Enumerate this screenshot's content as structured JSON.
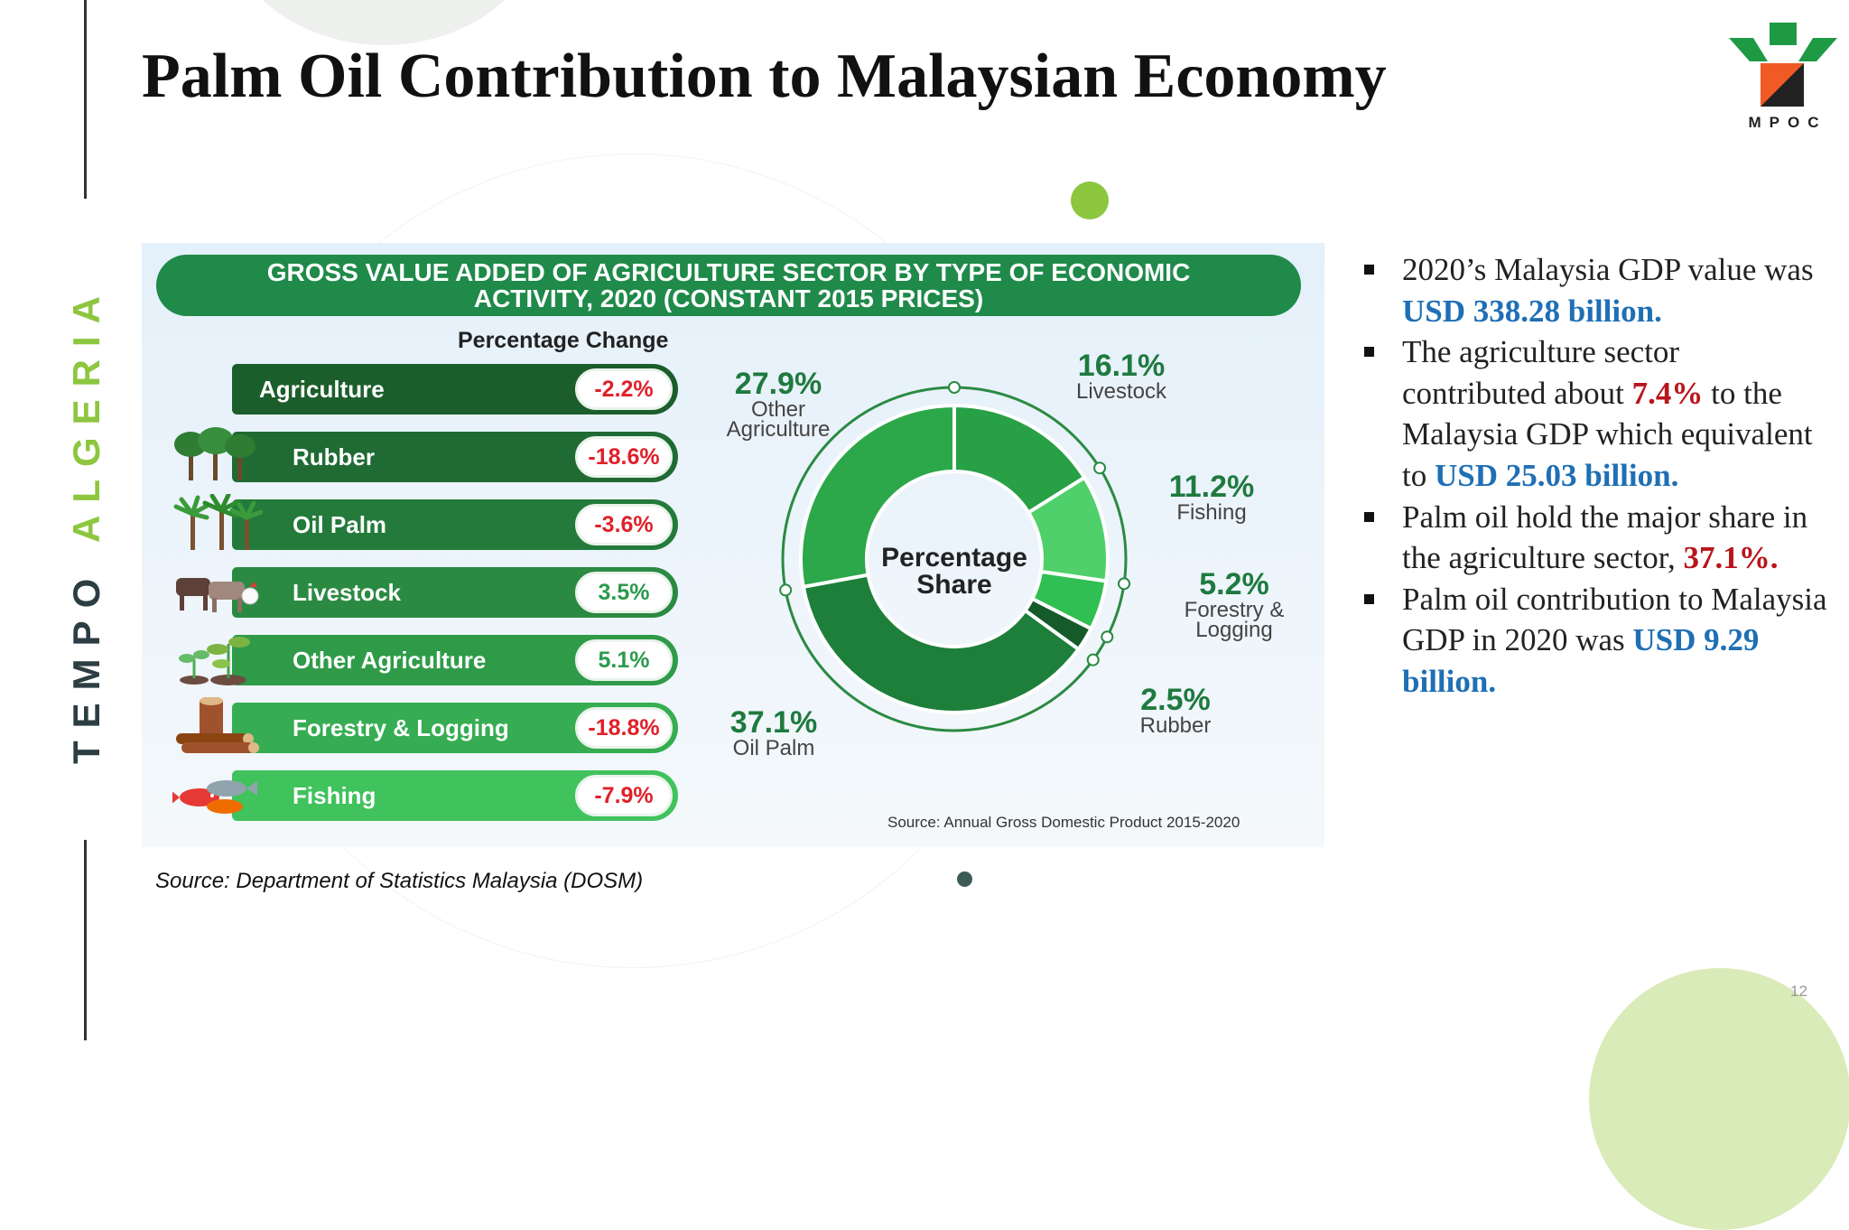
{
  "side_label": {
    "word1": "TEMPO",
    "word2": "ALGERIA"
  },
  "title": "Palm Oil Contribution to Malaysian Economy",
  "logo": {
    "text": "MPOC",
    "icon": "mpoc-logo-icon"
  },
  "infographic": {
    "header": "GROSS VALUE ADDED OF AGRICULTURE SECTOR BY TYPE OF ECONOMIC ACTIVITY, 2020 (CONSTANT 2015 PRICES)",
    "pct_heading": "Percentage Change",
    "rows": [
      {
        "label": "Agriculture",
        "value": "-2.2%",
        "color": "#1b5e2b",
        "picture": ""
      },
      {
        "label": "Rubber",
        "value": "-18.6%",
        "color": "#1f6b33",
        "picture": "rubber-trees-icon"
      },
      {
        "label": "Oil Palm",
        "value": "-3.6%",
        "color": "#237a3a",
        "picture": "palm-trees-icon"
      },
      {
        "label": "Livestock",
        "value": "3.5%",
        "color": "#2a8a42",
        "picture": "livestock-icon"
      },
      {
        "label": "Other Agriculture",
        "value": "5.1%",
        "color": "#2f9b49",
        "picture": "seedlings-icon"
      },
      {
        "label": "Forestry & Logging",
        "value": "-18.8%",
        "color": "#36ad52",
        "picture": "logs-icon"
      },
      {
        "label": "Fishing",
        "value": "-7.9%",
        "color": "#40c25c",
        "picture": "fish-icon"
      }
    ],
    "donut_title": "Percentage Share",
    "source": "Source: Annual Gross Domestic Product 2015-2020"
  },
  "chart_data": {
    "type": "pie",
    "title": "Percentage Share",
    "categories": [
      "Livestock",
      "Fishing",
      "Forestry & Logging",
      "Rubber",
      "Oil Palm",
      "Other Agriculture"
    ],
    "values": [
      16.1,
      11.2,
      5.2,
      2.5,
      37.1,
      27.9
    ],
    "value_labels": [
      "16.1%",
      "11.2%",
      "5.2%",
      "2.5%",
      "37.1%",
      "27.9%"
    ],
    "colors": [
      "#27a046",
      "#4fd06b",
      "#2fbf52",
      "#145a2a",
      "#1d7f3a",
      "#2ca84a"
    ]
  },
  "source": "Source: Department of Statistics Malaysia (DOSM)",
  "bullets": [
    [
      {
        "t": "2020’s Malaysia GDP value was "
      },
      {
        "t": "USD 338.28 billion.",
        "c": "blue"
      }
    ],
    [
      {
        "t": "The agriculture sector contributed about "
      },
      {
        "t": "7.4%",
        "c": "red"
      },
      {
        "t": " to the Malaysia GDP which equivalent to "
      },
      {
        "t": "USD 25.03 billion.",
        "c": "blue"
      }
    ],
    [
      {
        "t": "Palm oil hold the major share in the agriculture sector, "
      },
      {
        "t": "37.1%.",
        "c": "red"
      }
    ],
    [
      {
        "t": "Palm oil contribution to Malaysia GDP in 2020 was "
      },
      {
        "t": "USD 9.29 billion.",
        "c": "blue"
      }
    ]
  ],
  "page_number": "12",
  "colors": {
    "accent_green": "#8dc63f",
    "brand_green": "#1f8a4a",
    "highlight_blue": "#1f6fb5",
    "highlight_red": "#b8161c"
  }
}
